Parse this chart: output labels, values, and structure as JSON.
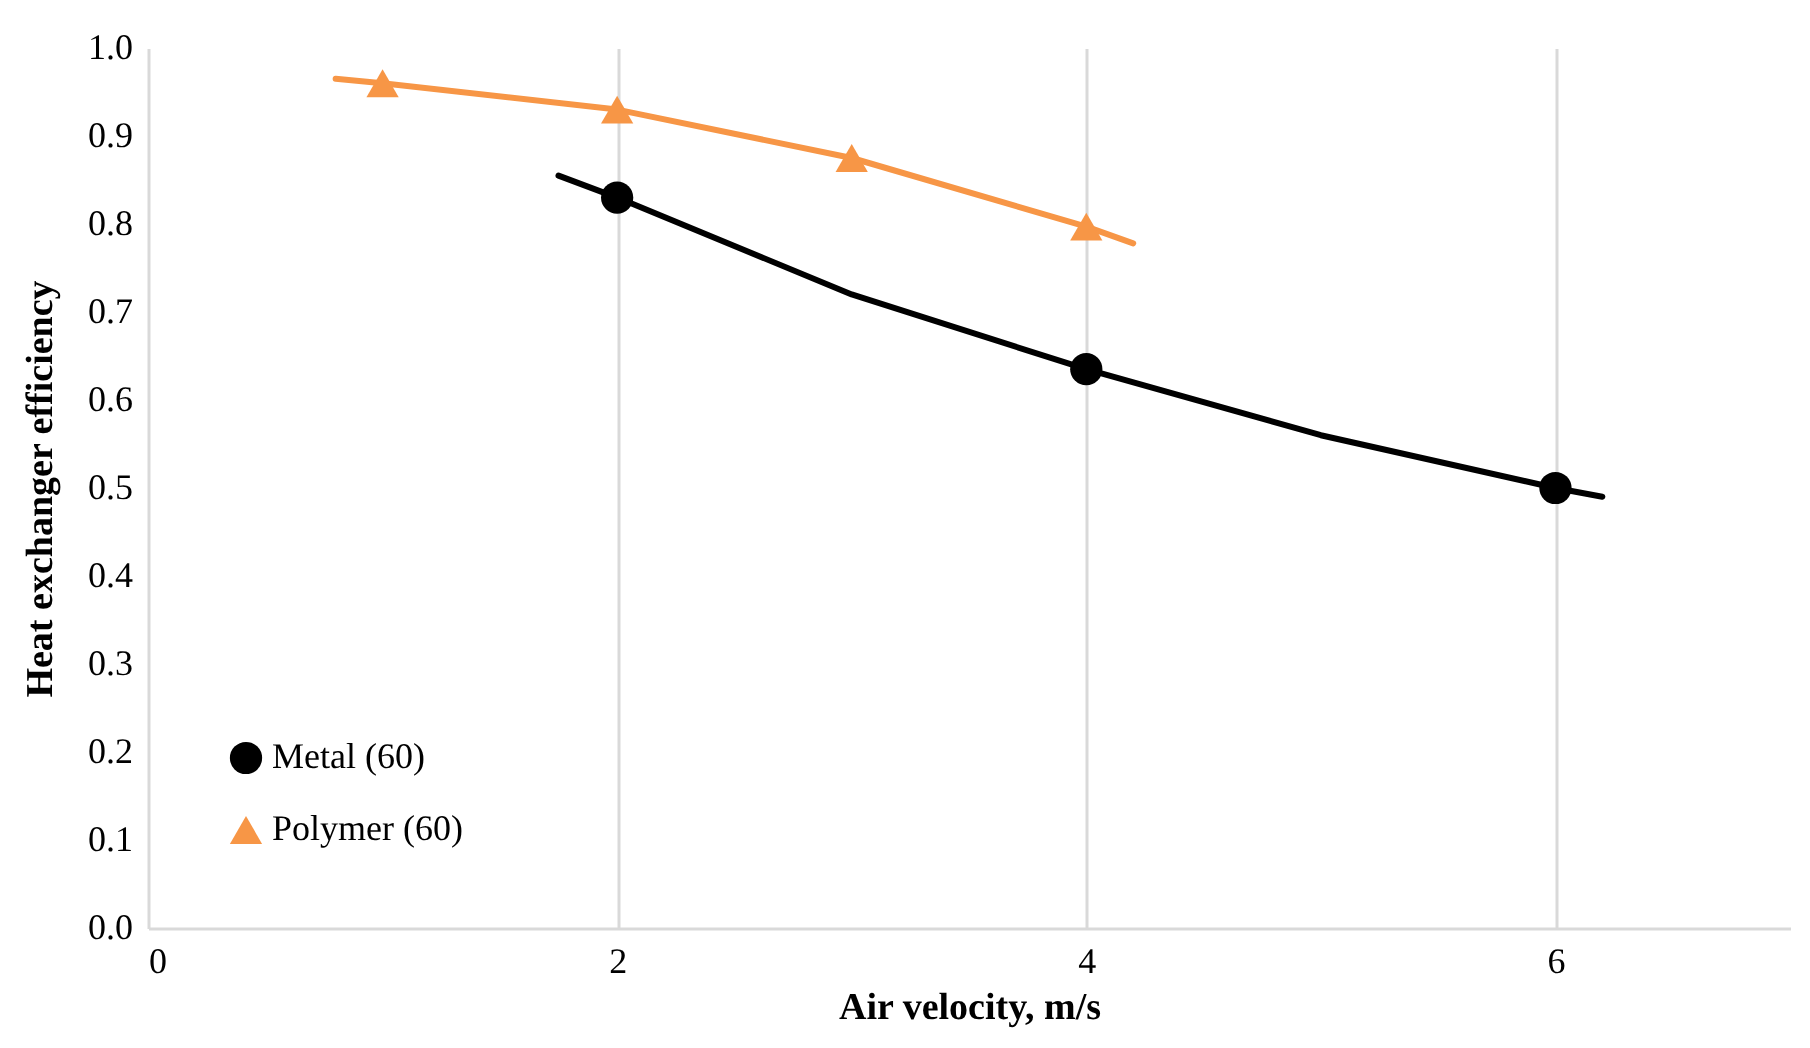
{
  "chart_data": {
    "type": "scatter",
    "xlabel": "Air velocity, m/s",
    "ylabel": "Heat exchanger efficiency",
    "xlim": [
      0,
      7
    ],
    "xticks": [
      0,
      2,
      4,
      6
    ],
    "ylim": [
      0,
      1
    ],
    "yticks": [
      {
        "value": 0,
        "label": "0.0"
      },
      {
        "value": 0.1,
        "label": "0.1"
      },
      {
        "value": 0.2,
        "label": "0.2"
      },
      {
        "value": 0.3,
        "label": "0.3"
      },
      {
        "value": 0.4,
        "label": "0.4"
      },
      {
        "value": 0.5,
        "label": "0.5"
      },
      {
        "value": 0.6,
        "label": "0.6"
      },
      {
        "value": 0.7,
        "label": "0.7"
      },
      {
        "value": 0.8,
        "label": "0.8"
      },
      {
        "value": 0.9,
        "label": "0.9"
      },
      {
        "value": 1,
        "label": "1.0"
      }
    ],
    "grid": "x",
    "legend": "bottom left",
    "series": [
      {
        "type": "line",
        "color": "#000000",
        "x": [
          1.75,
          2,
          3,
          4,
          5,
          6,
          6.2
        ],
        "values": [
          0.855,
          0.83,
          0.72,
          0.635,
          0.56,
          0.5,
          0.49
        ]
      },
      {
        "type": "line",
        "color": "#f79646",
        "x": [
          0.8,
          1,
          2,
          3,
          4,
          4.2
        ],
        "values": [
          0.965,
          0.96,
          0.93,
          0.875,
          0.797,
          0.778
        ]
      },
      {
        "name": "Metal (60)",
        "color": "#000000",
        "marker": "circle",
        "x": [
          2,
          4,
          6
        ],
        "values": [
          0.83,
          0.635,
          0.5
        ]
      },
      {
        "name": "Polymer (60)",
        "color": "#f79646",
        "marker": "triangle",
        "x": [
          1,
          2,
          3,
          4
        ],
        "values": [
          0.96,
          0.93,
          0.875,
          0.797
        ]
      }
    ]
  }
}
